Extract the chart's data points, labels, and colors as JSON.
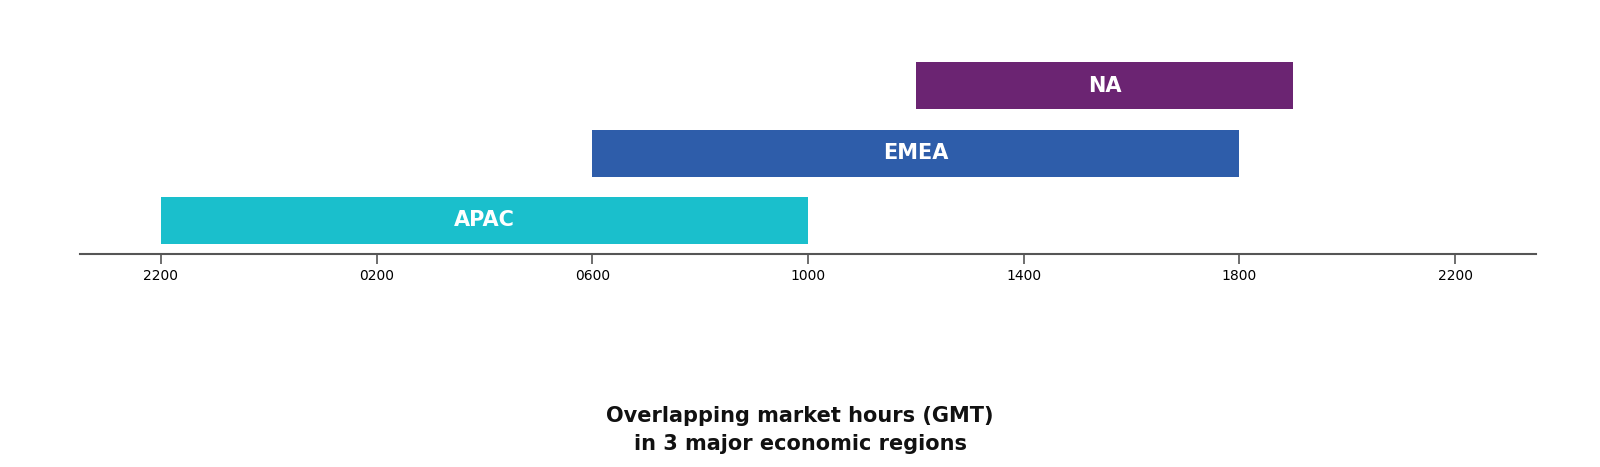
{
  "title_line1": "Overlapping market hours (GMT)",
  "title_line2": "in 3 major economic regions",
  "title_fontsize": 15,
  "regions": [
    {
      "name": "APAC",
      "start": 22,
      "end": 34,
      "color": "#1ABFCC",
      "y": 0,
      "height": 1.4
    },
    {
      "name": "EMEA",
      "start": 30,
      "end": 42,
      "color": "#2E5DAA",
      "y": 2.0,
      "height": 1.4
    },
    {
      "name": "NA",
      "start": 36,
      "end": 43,
      "color": "#6B2472",
      "y": 4.0,
      "height": 1.4
    }
  ],
  "x_ticks": [
    22,
    26,
    30,
    34,
    38,
    42,
    46
  ],
  "x_tick_labels": [
    "2200",
    "0200",
    "0600",
    "1000",
    "1400",
    "1800",
    "2200"
  ],
  "xlim": [
    20.5,
    47.5
  ],
  "ylim": [
    -1.5,
    6.0
  ],
  "axis_y": -1.0,
  "label_color": "#ffffff",
  "label_fontsize": 15,
  "tick_fontsize": 13,
  "axis_color": "#555555",
  "background_color": "#ffffff"
}
